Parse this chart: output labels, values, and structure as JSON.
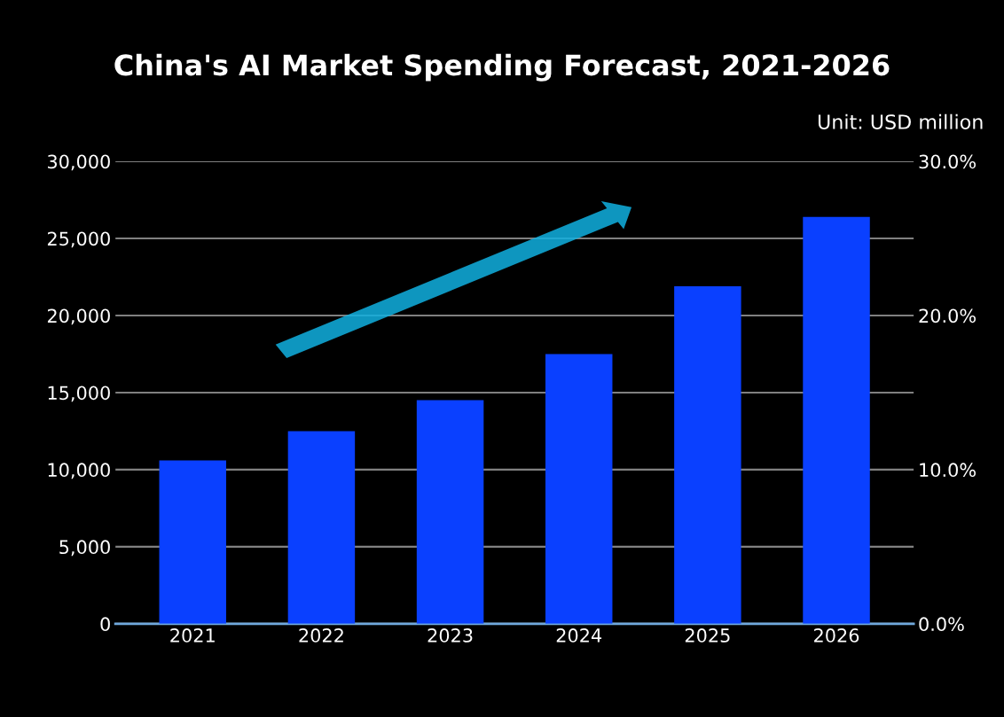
{
  "chart_data": {
    "type": "bar",
    "title": "China's AI Market Spending Forecast, 2021-2026",
    "annotations": [
      "Unit: USD million"
    ],
    "categories": [
      "2021",
      "2022",
      "2023",
      "2024",
      "2025",
      "2026"
    ],
    "values": [
      10600,
      12500,
      14500,
      17500,
      21900,
      26400
    ],
    "color": "#0a40ff",
    "ylim": [
      0,
      30000
    ],
    "yticks": [
      {
        "value": 0,
        "label": "0"
      },
      {
        "value": 5000,
        "label": "5,000"
      },
      {
        "value": 10000,
        "label": "10,000"
      },
      {
        "value": 15000,
        "label": "15,000"
      },
      {
        "value": 20000,
        "label": "20,000"
      },
      {
        "value": 25000,
        "label": "25,000"
      },
      {
        "value": 30000,
        "label": "30,000"
      }
    ],
    "y2lim": [
      0,
      30
    ],
    "y2ticks": [
      {
        "value": 0,
        "label": "0.0%"
      },
      {
        "value": 10,
        "label": "10.0%"
      },
      {
        "value": 20,
        "label": "20.0%"
      },
      {
        "value": 30,
        "label": "30.0%"
      }
    ],
    "grid": "y"
  }
}
